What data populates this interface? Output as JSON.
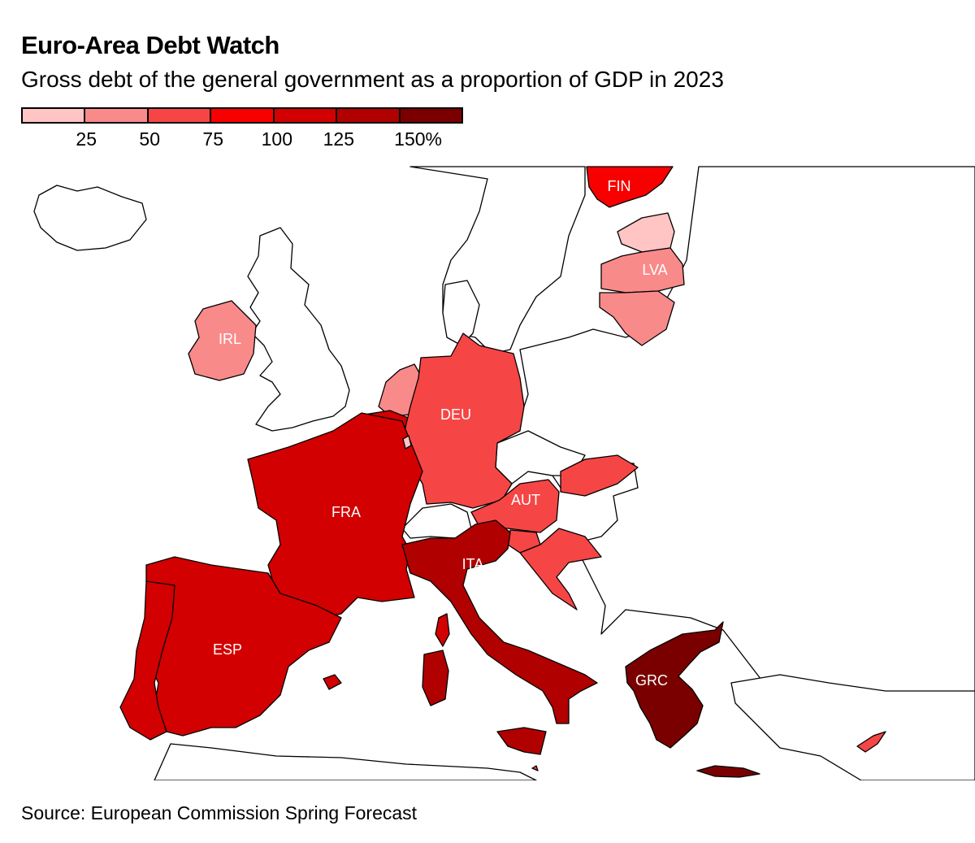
{
  "title": "Euro-Area Debt Watch",
  "subtitle": "Gross debt of the general government as a proportion of GDP in 2023",
  "legend": {
    "swatches": [
      "#ffc4c4",
      "#f98a8a",
      "#f64545",
      "#f80000",
      "#d20000",
      "#b10000",
      "#7a0000"
    ],
    "labels": [
      "25",
      "50",
      "75",
      "100",
      "125",
      "150%"
    ]
  },
  "map_labels": {
    "fin": "FIN",
    "lva": "LVA",
    "irl": "IRL",
    "deu": "DEU",
    "fra": "FRA",
    "aut": "AUT",
    "ita": "ITA",
    "esp": "ESP",
    "grc": "GRC"
  },
  "colors": {
    "fin": "#f80000",
    "est": "#ffc4c4",
    "lva": "#f98a8a",
    "ltu": "#f98a8a",
    "irl": "#f98a8a",
    "nld": "#f98a8a",
    "lux": "#ffc4c4",
    "deu": "#f64545",
    "aut": "#f64545",
    "svk": "#f64545",
    "svn": "#f64545",
    "hrv": "#f64545",
    "mlt": "#f64545",
    "cyp": "#f64545",
    "bel": "#d20000",
    "fra": "#d20000",
    "esp": "#d20000",
    "prt": "#d20000",
    "ita": "#b10000",
    "grc": "#7a0000",
    "non_euro": "#ffffff",
    "border": "#000000"
  },
  "source": "Source: European Commission Spring Forecast"
}
